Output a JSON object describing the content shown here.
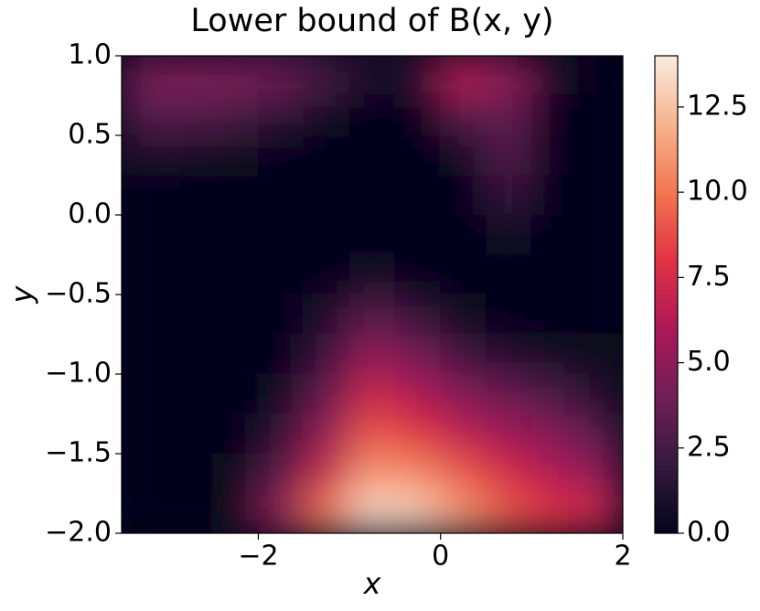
{
  "chart_data": {
    "type": "heatmap",
    "title": "Lower bound of B(x, y)",
    "xlabel": "x",
    "ylabel": "y",
    "xlim": [
      -3.5,
      2
    ],
    "ylim": [
      -2,
      1
    ],
    "xticks": [
      {
        "value": -2,
        "label": "−2"
      },
      0,
      2
    ],
    "yticks": [
      {
        "value": 1,
        "label": "1.0"
      },
      {
        "value": 0.5,
        "label": "0.5"
      },
      {
        "value": 0,
        "label": "0.0"
      },
      {
        "value": -0.5,
        "label": "−0.5"
      },
      {
        "value": -1,
        "label": "−1.0"
      },
      {
        "value": -1.5,
        "label": "−1.5"
      },
      {
        "value": -2,
        "label": "−2.0"
      }
    ],
    "x": [
      -3.25,
      -2.75,
      -2.25,
      -1.75,
      -1.25,
      -0.75,
      -0.25,
      0.25,
      0.75,
      1.25,
      1.75
    ],
    "y": [
      0.875,
      0.625,
      0.375,
      0.125,
      -0.125,
      -0.375,
      -0.625,
      -0.875,
      -1.125,
      -1.375,
      -1.625,
      -1.875
    ],
    "z": [
      [
        4.5,
        4.5,
        4.5,
        4,
        2.5,
        1,
        1.5,
        6.5,
        5,
        1,
        0
      ],
      [
        3,
        3,
        2.5,
        1.5,
        0.5,
        0,
        0,
        3,
        3.5,
        0,
        0
      ],
      [
        1,
        0.5,
        0.3,
        0,
        0,
        0,
        0,
        0.5,
        3,
        0,
        0
      ],
      [
        0,
        0,
        0,
        0,
        0,
        0,
        0,
        0,
        2,
        0,
        0
      ],
      [
        0,
        0,
        0,
        0,
        0,
        0,
        0,
        0,
        0.5,
        0,
        0
      ],
      [
        0,
        0,
        0,
        0,
        0,
        0.5,
        0,
        0,
        0,
        0,
        0
      ],
      [
        0,
        0,
        0,
        0,
        1,
        3,
        1.5,
        0.3,
        0,
        0,
        0
      ],
      [
        0,
        0,
        0,
        0,
        2,
        5,
        4,
        2,
        1,
        0.5,
        0.3
      ],
      [
        0,
        0,
        0,
        0.5,
        3.5,
        7,
        6,
        4.5,
        3.5,
        2.5,
        1
      ],
      [
        0,
        0,
        0,
        1.5,
        5,
        9,
        8,
        6.5,
        5.5,
        4.5,
        3
      ],
      [
        0,
        0,
        0.3,
        3,
        7,
        11,
        10.5,
        9,
        7.5,
        6,
        5
      ],
      [
        0,
        0,
        0.5,
        5,
        10,
        13.5,
        13,
        11,
        9,
        8,
        7
      ]
    ],
    "clim": [
      0,
      14
    ],
    "cticks": [
      {
        "value": 0,
        "label": "0.0"
      },
      {
        "value": 2.5,
        "label": "2.5"
      },
      {
        "value": 5,
        "label": "5.0"
      },
      {
        "value": 7.5,
        "label": "7.5"
      },
      {
        "value": 10,
        "label": "10.0"
      },
      {
        "value": 12.5,
        "label": "12.5"
      }
    ],
    "colormap": [
      "#03051a",
      "#35193e",
      "#701f57",
      "#ad1759",
      "#e13342",
      "#f37651",
      "#f6b48f",
      "#faebdd"
    ]
  }
}
